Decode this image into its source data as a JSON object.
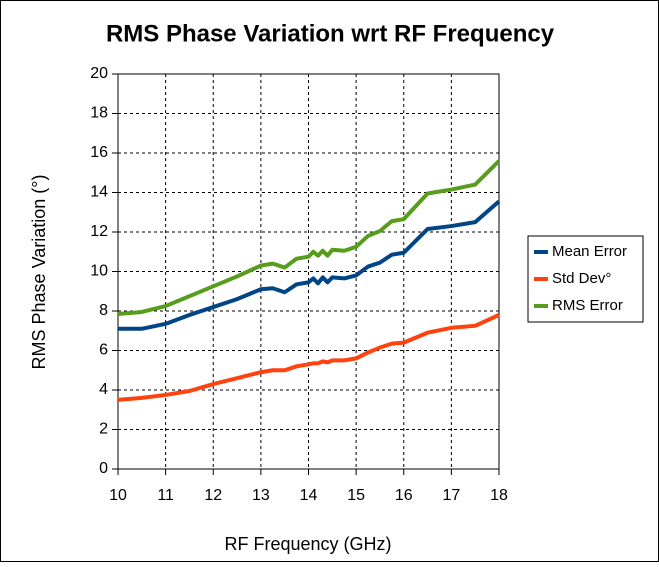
{
  "chart_data": {
    "type": "line",
    "title": "RMS Phase Variation wrt RF Frequency",
    "xlabel": "RF Frequency (GHz)",
    "ylabel": "RMS Phase Variation (°)",
    "x": [
      10,
      10.5,
      11,
      11.5,
      12,
      12.5,
      13,
      13.25,
      13.5,
      13.75,
      14,
      14.1,
      14.2,
      14.3,
      14.4,
      14.5,
      14.75,
      15,
      15.25,
      15.5,
      15.75,
      16,
      16.5,
      17,
      17.5,
      18
    ],
    "series": [
      {
        "name": "Mean Error",
        "color": "#004586",
        "values": [
          7.1,
          7.1,
          7.35,
          7.8,
          8.2,
          8.6,
          9.1,
          9.15,
          8.95,
          9.35,
          9.45,
          9.65,
          9.4,
          9.7,
          9.45,
          9.7,
          9.65,
          9.8,
          10.25,
          10.45,
          10.85,
          10.95,
          12.15,
          12.3,
          12.5,
          13.55
        ]
      },
      {
        "name": "Std Dev°",
        "color": "#ff420e",
        "values": [
          3.5,
          3.6,
          3.75,
          3.95,
          4.3,
          4.6,
          4.9,
          5.0,
          5.0,
          5.2,
          5.3,
          5.35,
          5.35,
          5.45,
          5.4,
          5.5,
          5.5,
          5.6,
          5.9,
          6.15,
          6.35,
          6.4,
          6.9,
          7.15,
          7.25,
          7.8
        ]
      },
      {
        "name": "RMS Error",
        "color": "#579d1c",
        "values": [
          7.85,
          7.95,
          8.25,
          8.75,
          9.25,
          9.75,
          10.3,
          10.4,
          10.2,
          10.65,
          10.75,
          11.0,
          10.8,
          11.05,
          10.8,
          11.1,
          11.05,
          11.25,
          11.8,
          12.05,
          12.55,
          12.65,
          13.95,
          14.15,
          14.4,
          15.6
        ]
      }
    ],
    "xlim": [
      10,
      18
    ],
    "xticks": [
      10,
      11,
      12,
      13,
      14,
      15,
      16,
      17,
      18
    ],
    "ylim": [
      0,
      20
    ],
    "yticks": [
      0,
      2,
      4,
      6,
      8,
      10,
      12,
      14,
      16,
      18,
      20
    ],
    "grid": true,
    "legend": "right"
  }
}
